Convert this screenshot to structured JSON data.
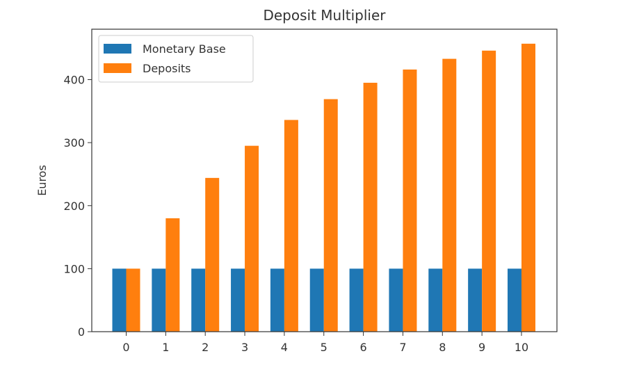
{
  "chart_data": {
    "type": "bar",
    "title": "Deposit Multiplier",
    "xlabel": "",
    "ylabel": "Euros",
    "categories": [
      "0",
      "1",
      "2",
      "3",
      "4",
      "5",
      "6",
      "7",
      "8",
      "9",
      "10"
    ],
    "series": [
      {
        "name": "Monetary Base",
        "color": "#1f77b4",
        "values": [
          100,
          100,
          100,
          100,
          100,
          100,
          100,
          100,
          100,
          100,
          100
        ]
      },
      {
        "name": "Deposits",
        "color": "#ff7f0e",
        "values": [
          100,
          180,
          244,
          295,
          336,
          369,
          395,
          416,
          433,
          446,
          457
        ]
      }
    ],
    "ylim": [
      0,
      480
    ],
    "yticks": [
      0,
      100,
      200,
      300,
      400
    ],
    "grid": false,
    "legend_position": "top-left"
  }
}
